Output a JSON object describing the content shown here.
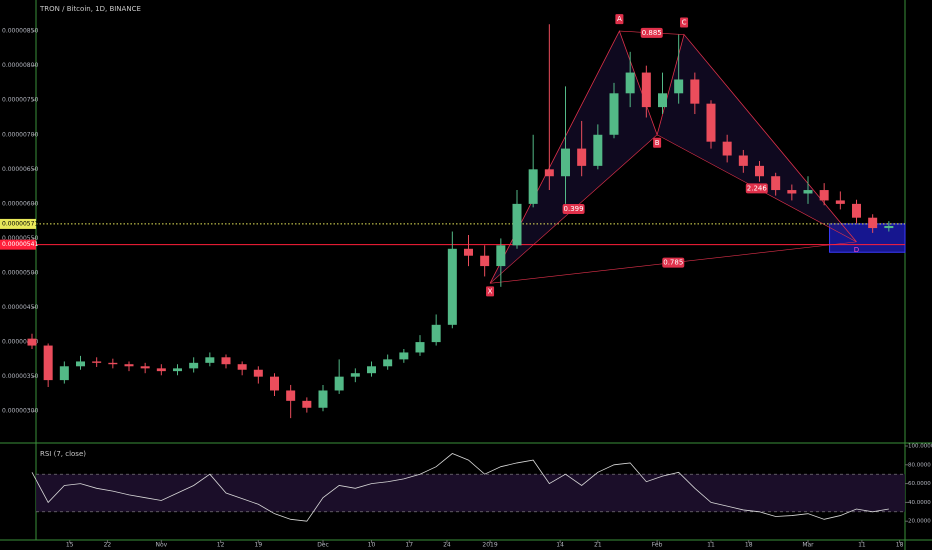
{
  "chart_data": {
    "type": "candlestick",
    "title": "TRON / Bitcoin, 1D, BINANCE",
    "x": [
      0,
      3,
      6,
      9,
      12,
      15,
      18,
      21,
      24,
      27,
      30,
      33,
      36,
      39,
      42,
      45,
      48,
      51,
      54,
      57,
      60,
      63,
      66,
      69,
      72,
      75,
      78,
      81,
      84,
      87,
      90,
      93,
      96,
      99,
      102,
      105,
      108,
      111,
      114,
      117,
      120,
      123,
      126,
      129,
      132,
      135,
      138,
      141,
      144,
      147,
      150,
      153,
      156,
      159
    ],
    "open": [
      4.05e-06,
      3.95e-06,
      3.45e-06,
      3.65e-06,
      3.72e-06,
      3.7e-06,
      3.68e-06,
      3.65e-06,
      3.62e-06,
      3.58e-06,
      3.62e-06,
      3.7e-06,
      3.78e-06,
      3.68e-06,
      3.6e-06,
      3.5e-06,
      3.3e-06,
      3.15e-06,
      3.05e-06,
      3.3e-06,
      3.5e-06,
      3.55e-06,
      3.65e-06,
      3.75e-06,
      3.85e-06,
      4e-06,
      4.25e-06,
      5.35e-06,
      5.25e-06,
      5.1e-06,
      5.4e-06,
      6e-06,
      6.5e-06,
      6.4e-06,
      6.8e-06,
      6.55e-06,
      7e-06,
      7.6e-06,
      7.9e-06,
      7.4e-06,
      7.6e-06,
      7.8e-06,
      7.45e-06,
      6.9e-06,
      6.7e-06,
      6.55e-06,
      6.4e-06,
      6.2e-06,
      6.15e-06,
      6.2e-06,
      6.05e-06,
      6e-06,
      5.8e-06,
      5.65e-06
    ],
    "high": [
      4.12e-06,
      3.98e-06,
      3.72e-06,
      3.8e-06,
      3.78e-06,
      3.76e-06,
      3.72e-06,
      3.7e-06,
      3.68e-06,
      3.68e-06,
      3.78e-06,
      3.85e-06,
      3.82e-06,
      3.72e-06,
      3.65e-06,
      3.55e-06,
      3.38e-06,
      3.2e-06,
      3.38e-06,
      3.75e-06,
      3.62e-06,
      3.72e-06,
      3.82e-06,
      3.9e-06,
      4.1e-06,
      4.4e-06,
      5.6e-06,
      5.55e-06,
      5.4e-06,
      5.5e-06,
      6.2e-06,
      7e-06,
      8.6e-06,
      7.7e-06,
      7.2e-06,
      7.15e-06,
      7.75e-06,
      8.2e-06,
      8e-06,
      7.9e-06,
      8.45e-06,
      7.9e-06,
      7.5e-06,
      7e-06,
      6.78e-06,
      6.62e-06,
      6.45e-06,
      6.28e-06,
      6.4e-06,
      6.3e-06,
      6.18e-06,
      6.06e-06,
      5.85e-06,
      5.75e-06
    ],
    "low": [
      3.9e-06,
      3.35e-06,
      3.4e-06,
      3.6e-06,
      3.64e-06,
      3.62e-06,
      3.58e-06,
      3.55e-06,
      3.52e-06,
      3.52e-06,
      3.56e-06,
      3.65e-06,
      3.62e-06,
      3.52e-06,
      3.4e-06,
      3.22e-06,
      2.9e-06,
      2.98e-06,
      3e-06,
      3.25e-06,
      3.42e-06,
      3.5e-06,
      3.6e-06,
      3.7e-06,
      3.8e-06,
      3.95e-06,
      4.2e-06,
      5.1e-06,
      4.95e-06,
      4.8e-06,
      5.35e-06,
      5.95e-06,
      6.2e-06,
      6e-06,
      6.4e-06,
      6.5e-06,
      6.95e-06,
      7.4e-06,
      7.25e-06,
      7.3e-06,
      7.45e-06,
      7.3e-06,
      6.8e-06,
      6.6e-06,
      6.45e-06,
      6.32e-06,
      6.12e-06,
      6.05e-06,
      6e-06,
      5.98e-06,
      5.92e-06,
      5.72e-06,
      5.58e-06,
      5.6e-06
    ],
    "close": [
      3.95e-06,
      3.45e-06,
      3.65e-06,
      3.72e-06,
      3.7e-06,
      3.68e-06,
      3.65e-06,
      3.62e-06,
      3.58e-06,
      3.62e-06,
      3.7e-06,
      3.78e-06,
      3.68e-06,
      3.6e-06,
      3.5e-06,
      3.3e-06,
      3.15e-06,
      3.05e-06,
      3.3e-06,
      3.5e-06,
      3.55e-06,
      3.65e-06,
      3.75e-06,
      3.85e-06,
      4e-06,
      4.25e-06,
      5.35e-06,
      5.25e-06,
      5.1e-06,
      5.4e-06,
      6e-06,
      6.5e-06,
      6.4e-06,
      6.8e-06,
      6.55e-06,
      7e-06,
      7.6e-06,
      7.9e-06,
      7.4e-06,
      7.6e-06,
      7.8e-06,
      7.45e-06,
      6.9e-06,
      6.7e-06,
      6.55e-06,
      6.4e-06,
      6.2e-06,
      6.15e-06,
      6.2e-06,
      6.05e-06,
      6e-06,
      5.8e-06,
      5.65e-06,
      5.68e-06
    ],
    "up_color": "#53b987",
    "down_color": "#eb4d5c",
    "xlim": [
      0,
      162
    ],
    "xticks": [
      {
        "value": 7,
        "label": "15"
      },
      {
        "value": 14,
        "label": "22"
      },
      {
        "value": 24,
        "label": "Nov"
      },
      {
        "value": 35,
        "label": "12"
      },
      {
        "value": 42,
        "label": "19"
      },
      {
        "value": 54,
        "label": "Dec"
      },
      {
        "value": 63,
        "label": "10"
      },
      {
        "value": 70,
        "label": "17"
      },
      {
        "value": 77,
        "label": "24"
      },
      {
        "value": 85,
        "label": "2019"
      },
      {
        "value": 98,
        "label": "14"
      },
      {
        "value": 105,
        "label": "21"
      },
      {
        "value": 116,
        "label": "Feb"
      },
      {
        "value": 126,
        "label": "11"
      },
      {
        "value": 133,
        "label": "18"
      },
      {
        "value": 144,
        "label": "Mar"
      },
      {
        "value": 154,
        "label": "11"
      },
      {
        "value": 161,
        "label": "18"
      }
    ],
    "ylim": [
      2.54e-06,
      8.95e-06
    ],
    "yticks": [
      {
        "value": 3e-06,
        "label": "0.00000300"
      },
      {
        "value": 3.5e-06,
        "label": "0.00000350"
      },
      {
        "value": 4e-06,
        "label": "0.00000400"
      },
      {
        "value": 4.5e-06,
        "label": "0.00000450"
      },
      {
        "value": 5e-06,
        "label": "0.00000500"
      },
      {
        "value": 5.5e-06,
        "label": "0.00000550"
      },
      {
        "value": 6e-06,
        "label": "0.00000600"
      },
      {
        "value": 6.5e-06,
        "label": "0.00000650"
      },
      {
        "value": 7e-06,
        "label": "0.00000700"
      },
      {
        "value": 7.5e-06,
        "label": "0.00000750"
      },
      {
        "value": 8e-06,
        "label": "0.00000800"
      },
      {
        "value": 8.5e-06,
        "label": "0.00000850"
      }
    ],
    "price_lines": [
      {
        "value": 5.71e-06,
        "label": "0.00000571",
        "color": "#e8e85a",
        "style": "dotted"
      },
      {
        "value": 5.41e-06,
        "label": "0.00000541",
        "color": "#ff1f3a",
        "style": "solid"
      }
    ],
    "pattern": {
      "color": "#e0314b",
      "points": [
        {
          "label": "X",
          "x": 85,
          "y": 4.85e-06
        },
        {
          "label": "A",
          "x": 109,
          "y": 8.5e-06
        },
        {
          "label": "B",
          "x": 116,
          "y": 7e-06
        },
        {
          "label": "C",
          "x": 121,
          "y": 8.45e-06
        },
        {
          "label": "D",
          "x": 153,
          "y": 5.45e-06
        }
      ],
      "ratios": [
        "0.399",
        "0.885",
        "2.246",
        "0.785"
      ]
    },
    "zone": {
      "x": [
        148,
        162
      ],
      "y": [
        5.3e-06,
        5.71e-06
      ],
      "color": "#1a1aa8"
    },
    "rsi": {
      "title": "RSI (7, close)",
      "values": [
        72,
        40,
        58,
        60,
        55,
        52,
        48,
        45,
        42,
        50,
        58,
        70,
        50,
        44,
        38,
        28,
        22,
        20,
        45,
        58,
        55,
        60,
        62,
        65,
        70,
        78,
        92,
        85,
        70,
        78,
        82,
        85,
        60,
        70,
        58,
        72,
        80,
        82,
        62,
        68,
        72,
        55,
        40,
        36,
        32,
        30,
        25,
        26,
        28,
        22,
        26,
        33,
        30,
        33
      ],
      "color": "#d8d8d8",
      "ylim": [
        0,
        100
      ],
      "yticks": [
        {
          "value": 100,
          "label": "100.0000"
        },
        {
          "value": 80,
          "label": "80.0000"
        },
        {
          "value": 60,
          "label": "60.0000"
        },
        {
          "value": 40,
          "label": "40.0000"
        },
        {
          "value": 20,
          "label": "20.0000"
        }
      ],
      "bands": [
        30,
        70
      ]
    }
  }
}
